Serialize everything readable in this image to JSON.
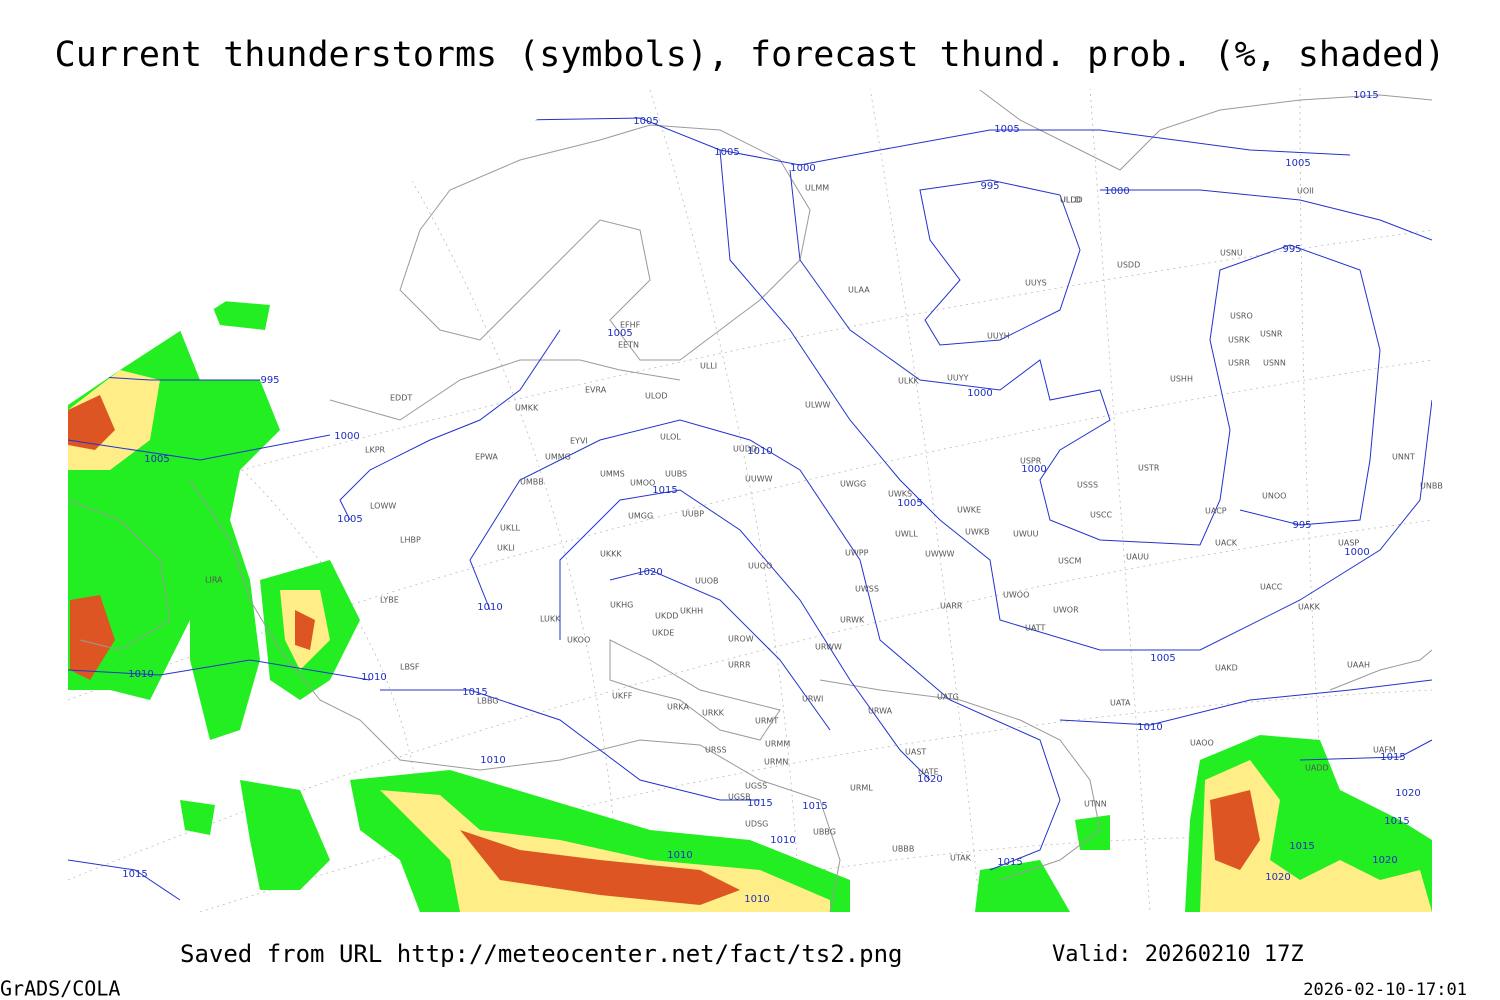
{
  "header": {
    "title": "Current thunderstorms (symbols), forecast thund. prob. (%, shaded)"
  },
  "map": {
    "isobar_labels": [
      1005,
      1005,
      1005,
      1015,
      1005,
      1000,
      995,
      1000,
      995,
      1005,
      995,
      1000,
      1000,
      1010,
      1005,
      1000,
      1015,
      1005,
      1005,
      995,
      1000,
      1020,
      1010,
      1005,
      1010,
      1010,
      1015,
      1010,
      1010,
      1020,
      1015,
      1015,
      1010,
      1010,
      1015,
      1015,
      1010,
      1015,
      1020,
      1015,
      1015,
      1020,
      1020
    ],
    "station_labels": [
      "EFHF",
      "EETN",
      "ULLI",
      "EVRA",
      "ULOD",
      "EDDT",
      "UMKK",
      "ULOL",
      "EYVI",
      "UUDD",
      "LKPR",
      "EPWA",
      "UMMG",
      "UMMS",
      "UUBS",
      "UUWW",
      "UMOO",
      "UMBB",
      "LOWW",
      "UMGG",
      "UUBP",
      "UKLL",
      "LHBP",
      "UKLI",
      "UKKK",
      "UUOO",
      "LIRA",
      "UUOB",
      "LYBE",
      "UKHH",
      "UKDD",
      "UKDE",
      "UKOO",
      "LUKK",
      "UKHG",
      "UROW",
      "LBSF",
      "URRR",
      "UKFF",
      "LBBG",
      "URKA",
      "URKK",
      "URMT",
      "URSS",
      "URMM",
      "URMN",
      "UGSS",
      "UGSB",
      "UDSG",
      "UBBG",
      "ULMM",
      "ULAA",
      "ULDD",
      "USDD",
      "UUYS",
      "UUYH",
      "UUYY",
      "ULKK",
      "ULWW",
      "USNU",
      "USRO",
      "USRK",
      "USNR",
      "USRR",
      "USNN",
      "USHH",
      "USPR",
      "USSS",
      "USTR",
      "UNOO",
      "USCC",
      "UACP",
      "UACK",
      "UAUU",
      "USCM",
      "UASP",
      "UNNT",
      "UNBB",
      "UWGG",
      "UWKS",
      "UWKE",
      "UWKB",
      "UWUU",
      "UWLL",
      "UWPP",
      "UWWW",
      "UWSS",
      "UARR",
      "UWOO",
      "UWOR",
      "UATT",
      "UACC",
      "UAKK",
      "UAKD",
      "UAAH",
      "URWI",
      "URWA",
      "UATG",
      "UATA",
      "URWW",
      "URWK",
      "UAOO",
      "UAST",
      "UATE",
      "URML",
      "UBBB",
      "UTAK",
      "UTNN",
      "UAFM",
      "UADD",
      "ULLD",
      "UOII"
    ]
  },
  "footer": {
    "source": "Saved from URL http://meteocenter.net/fact/ts2.png",
    "valid": "Valid: 20260210 17Z",
    "software": "GrADS/COLA",
    "timestamp": "2026-02-10-17:01"
  }
}
